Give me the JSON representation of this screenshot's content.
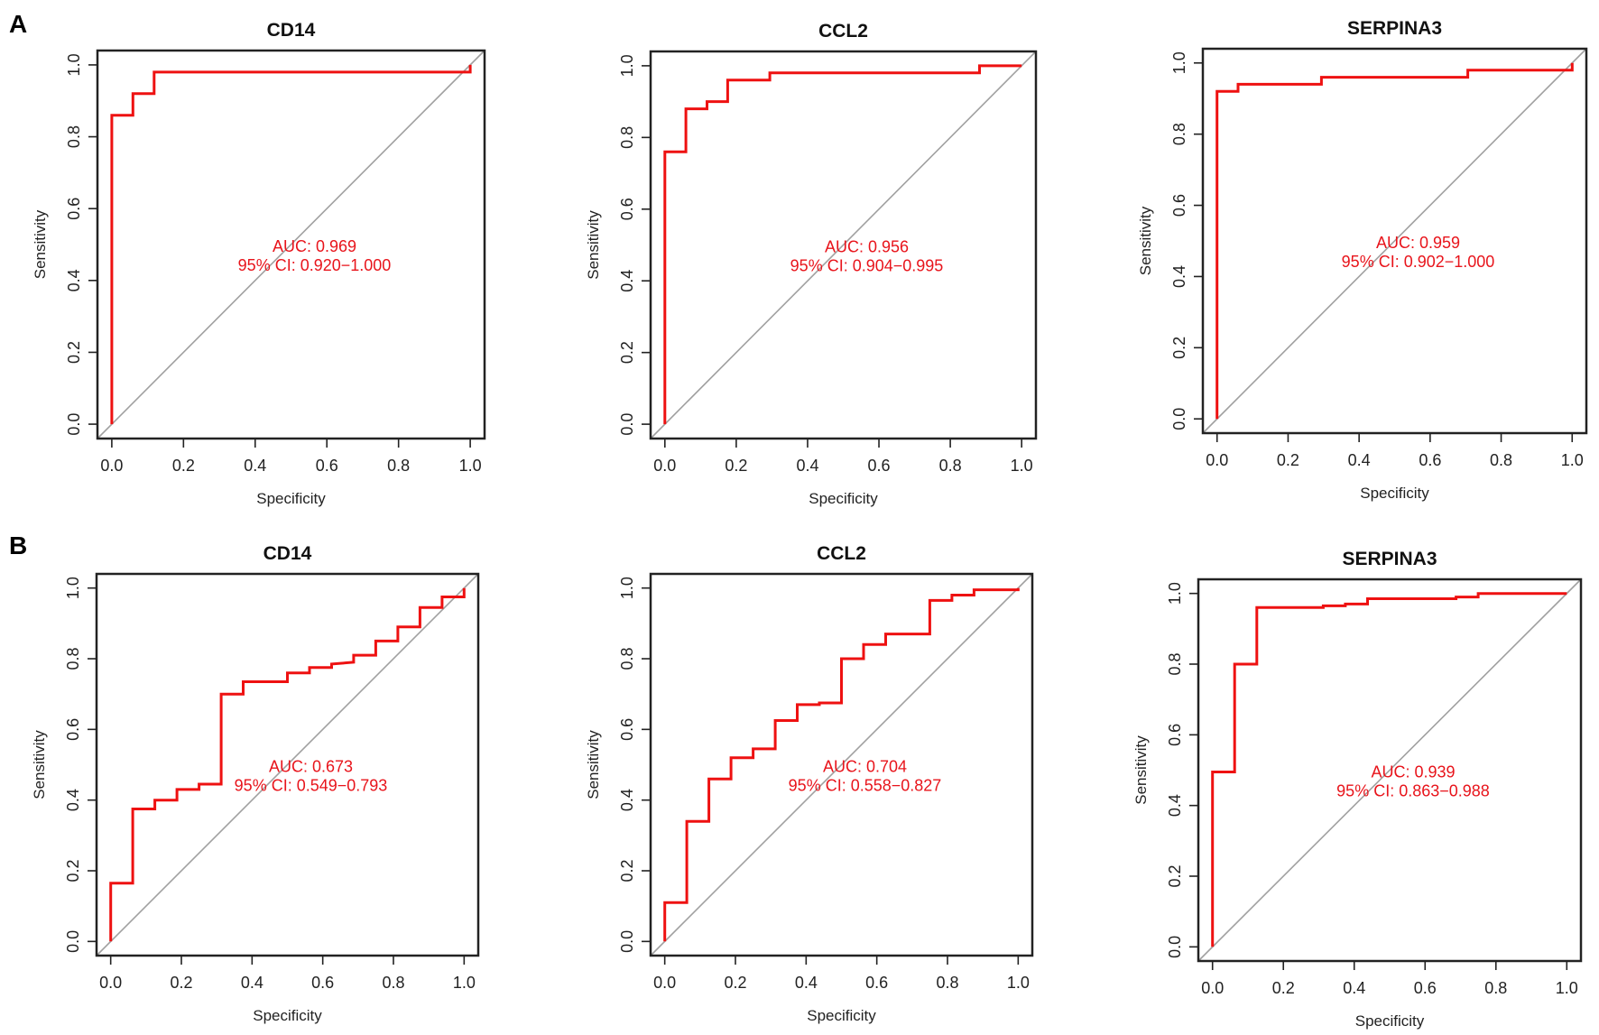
{
  "panel_labels": [
    "A",
    "B"
  ],
  "colors": {
    "curve": "#ee1111",
    "diagonal": "#a0a0a0",
    "auc_text": "#e8141b",
    "frame": "#222222"
  },
  "chart_data": [
    {
      "type": "line",
      "panel": "A",
      "title": "CD14",
      "xlabel": "Specificity",
      "ylabel": "Sensitivity",
      "xlim": [
        0,
        1
      ],
      "ylim": [
        0,
        1
      ],
      "xticks": [
        "0.0",
        "0.2",
        "0.4",
        "0.6",
        "0.8",
        "1.0"
      ],
      "yticks": [
        "0.0",
        "0.2",
        "0.4",
        "0.6",
        "0.8",
        "1.0"
      ],
      "auc_label": "AUC: 0.969",
      "ci_label": "95% CI: 0.920−1.000",
      "points": [
        [
          0,
          0
        ],
        [
          0,
          0.86
        ],
        [
          0.059,
          0.86
        ],
        [
          0.059,
          0.92
        ],
        [
          0.118,
          0.92
        ],
        [
          0.118,
          0.98
        ],
        [
          1,
          0.98
        ],
        [
          1,
          1
        ]
      ]
    },
    {
      "type": "line",
      "panel": "A",
      "title": "CCL2",
      "xlabel": "Specificity",
      "ylabel": "Sensitivity",
      "xlim": [
        0,
        1
      ],
      "ylim": [
        0,
        1
      ],
      "xticks": [
        "0.0",
        "0.2",
        "0.4",
        "0.6",
        "0.8",
        "1.0"
      ],
      "yticks": [
        "0.0",
        "0.2",
        "0.4",
        "0.6",
        "0.8",
        "1.0"
      ],
      "auc_label": "AUC: 0.956",
      "ci_label": "95% CI: 0.904−0.995",
      "points": [
        [
          0,
          0
        ],
        [
          0,
          0.76
        ],
        [
          0.059,
          0.76
        ],
        [
          0.059,
          0.88
        ],
        [
          0.118,
          0.88
        ],
        [
          0.118,
          0.9
        ],
        [
          0.176,
          0.9
        ],
        [
          0.176,
          0.96
        ],
        [
          0.294,
          0.96
        ],
        [
          0.294,
          0.98
        ],
        [
          0.882,
          0.98
        ],
        [
          0.882,
          1
        ],
        [
          1,
          1
        ]
      ]
    },
    {
      "type": "line",
      "panel": "A",
      "title": "SERPINA3",
      "xlabel": "Specificity",
      "ylabel": "Sensitivity",
      "xlim": [
        0,
        1
      ],
      "ylim": [
        0,
        1
      ],
      "xticks": [
        "0.0",
        "0.2",
        "0.4",
        "0.6",
        "0.8",
        "1.0"
      ],
      "yticks": [
        "0.0",
        "0.2",
        "0.4",
        "0.6",
        "0.8",
        "1.0"
      ],
      "auc_label": "AUC: 0.959",
      "ci_label": "95% CI: 0.902−1.000",
      "points": [
        [
          0,
          0
        ],
        [
          0,
          0.92
        ],
        [
          0.059,
          0.92
        ],
        [
          0.059,
          0.94
        ],
        [
          0.294,
          0.94
        ],
        [
          0.294,
          0.96
        ],
        [
          0.706,
          0.96
        ],
        [
          0.706,
          0.98
        ],
        [
          1,
          0.98
        ],
        [
          1,
          1
        ]
      ]
    },
    {
      "type": "line",
      "panel": "B",
      "title": "CD14",
      "xlabel": "Specificity",
      "ylabel": "Sensitivity",
      "xlim": [
        0,
        1
      ],
      "ylim": [
        0,
        1
      ],
      "xticks": [
        "0.0",
        "0.2",
        "0.4",
        "0.6",
        "0.8",
        "1.0"
      ],
      "yticks": [
        "0.0",
        "0.2",
        "0.4",
        "0.6",
        "0.8",
        "1.0"
      ],
      "auc_label": "AUC: 0.673",
      "ci_label": "95% CI: 0.549−0.793",
      "points": [
        [
          0,
          0
        ],
        [
          0,
          0.165
        ],
        [
          0.0625,
          0.165
        ],
        [
          0.0625,
          0.375
        ],
        [
          0.125,
          0.375
        ],
        [
          0.125,
          0.4
        ],
        [
          0.1875,
          0.4
        ],
        [
          0.1875,
          0.43
        ],
        [
          0.25,
          0.43
        ],
        [
          0.25,
          0.445
        ],
        [
          0.3125,
          0.445
        ],
        [
          0.3125,
          0.7
        ],
        [
          0.375,
          0.7
        ],
        [
          0.375,
          0.735
        ],
        [
          0.5,
          0.735
        ],
        [
          0.5,
          0.76
        ],
        [
          0.5625,
          0.76
        ],
        [
          0.5625,
          0.775
        ],
        [
          0.625,
          0.775
        ],
        [
          0.625,
          0.785
        ],
        [
          0.6875,
          0.79
        ],
        [
          0.6875,
          0.81
        ],
        [
          0.75,
          0.81
        ],
        [
          0.75,
          0.85
        ],
        [
          0.8125,
          0.85
        ],
        [
          0.8125,
          0.89
        ],
        [
          0.875,
          0.89
        ],
        [
          0.875,
          0.945
        ],
        [
          0.9375,
          0.945
        ],
        [
          0.9375,
          0.975
        ],
        [
          1,
          0.975
        ],
        [
          1,
          1
        ]
      ]
    },
    {
      "type": "line",
      "panel": "B",
      "title": "CCL2",
      "xlabel": "Specificity",
      "ylabel": "Sensitivity",
      "xlim": [
        0,
        1
      ],
      "ylim": [
        0,
        1
      ],
      "xticks": [
        "0.0",
        "0.2",
        "0.4",
        "0.6",
        "0.8",
        "1.0"
      ],
      "yticks": [
        "0.0",
        "0.2",
        "0.4",
        "0.6",
        "0.8",
        "1.0"
      ],
      "auc_label": "AUC: 0.704",
      "ci_label": "95% CI: 0.558−0.827",
      "points": [
        [
          0,
          0
        ],
        [
          0,
          0.11
        ],
        [
          0.0625,
          0.11
        ],
        [
          0.0625,
          0.34
        ],
        [
          0.125,
          0.34
        ],
        [
          0.125,
          0.46
        ],
        [
          0.1875,
          0.46
        ],
        [
          0.1875,
          0.52
        ],
        [
          0.25,
          0.52
        ],
        [
          0.25,
          0.545
        ],
        [
          0.3125,
          0.545
        ],
        [
          0.3125,
          0.625
        ],
        [
          0.375,
          0.625
        ],
        [
          0.375,
          0.67
        ],
        [
          0.4375,
          0.67
        ],
        [
          0.4375,
          0.675
        ],
        [
          0.5,
          0.675
        ],
        [
          0.5,
          0.8
        ],
        [
          0.5625,
          0.8
        ],
        [
          0.5625,
          0.84
        ],
        [
          0.625,
          0.84
        ],
        [
          0.625,
          0.87
        ],
        [
          0.75,
          0.87
        ],
        [
          0.75,
          0.965
        ],
        [
          0.8125,
          0.965
        ],
        [
          0.8125,
          0.98
        ],
        [
          0.875,
          0.98
        ],
        [
          0.875,
          0.995
        ],
        [
          1,
          0.995
        ],
        [
          1,
          1
        ]
      ]
    },
    {
      "type": "line",
      "panel": "B",
      "title": "SERPINA3",
      "xlabel": "Specificity",
      "ylabel": "Sensitivity",
      "xlim": [
        0,
        1
      ],
      "ylim": [
        0,
        1
      ],
      "xticks": [
        "0.0",
        "0.2",
        "0.4",
        "0.6",
        "0.8",
        "1.0"
      ],
      "yticks": [
        "0.0",
        "0.2",
        "0.4",
        "0.6",
        "0.8",
        "1.0"
      ],
      "auc_label": "AUC: 0.939",
      "ci_label": "95% CI: 0.863−0.988",
      "points": [
        [
          0,
          0
        ],
        [
          0,
          0.495
        ],
        [
          0.0625,
          0.495
        ],
        [
          0.0625,
          0.8
        ],
        [
          0.125,
          0.8
        ],
        [
          0.125,
          0.96
        ],
        [
          0.3125,
          0.96
        ],
        [
          0.3125,
          0.965
        ],
        [
          0.375,
          0.965
        ],
        [
          0.375,
          0.97
        ],
        [
          0.4375,
          0.97
        ],
        [
          0.4375,
          0.985
        ],
        [
          0.6875,
          0.985
        ],
        [
          0.6875,
          0.99
        ],
        [
          0.75,
          0.99
        ],
        [
          0.75,
          1
        ],
        [
          1,
          1
        ]
      ]
    }
  ]
}
